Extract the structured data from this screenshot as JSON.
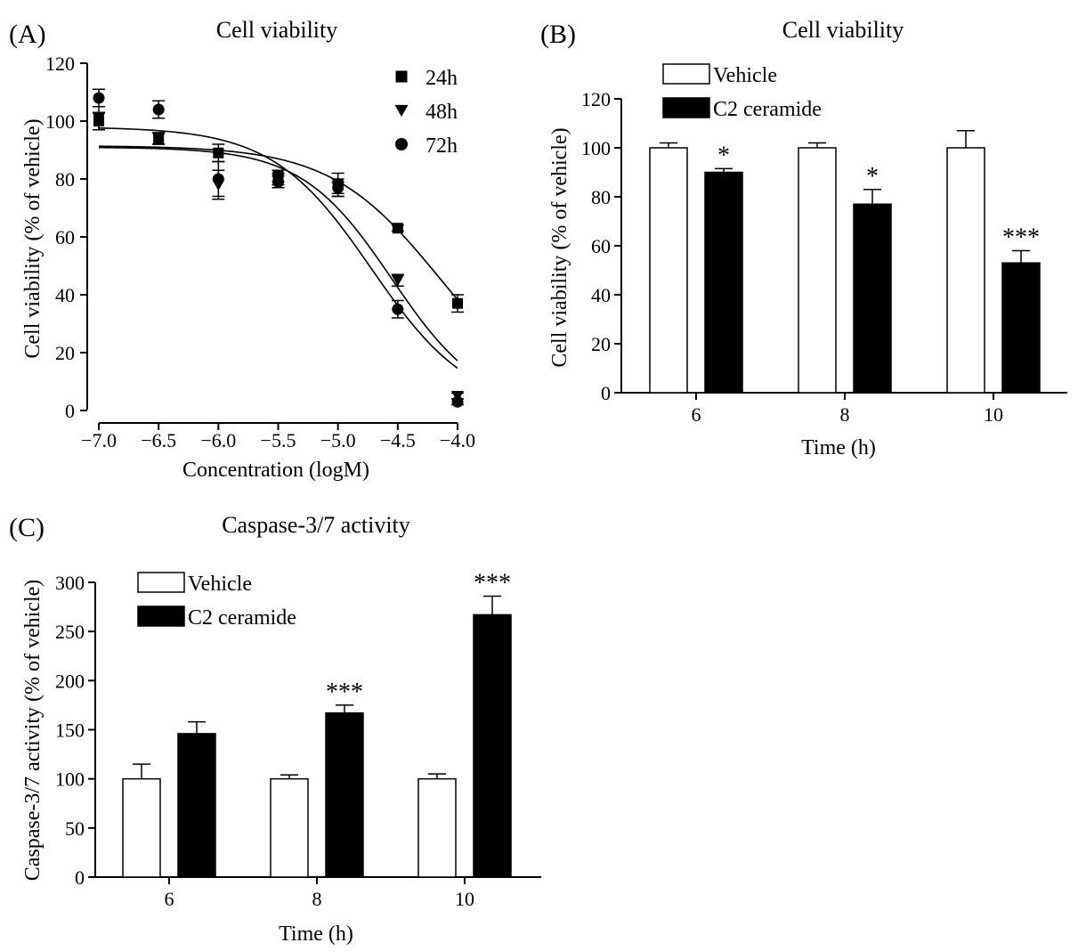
{
  "chart_data": [
    {
      "panel_label": "(A)",
      "type": "scatter",
      "title": "Cell viability",
      "xlabel": "Concentration (logM)",
      "ylabel": "Cell viability (% of vehicle)",
      "xlim": [
        -7.0,
        -4.0
      ],
      "ylim": [
        0,
        120
      ],
      "x_ticks": [
        -7.0,
        -6.5,
        -6.0,
        -5.5,
        -5.0,
        -4.5,
        -4.0
      ],
      "x_tick_labels": [
        "−7.0",
        "−6.5",
        "−6.0",
        "−5.5",
        "−5.0",
        "−4.5",
        "−4.0"
      ],
      "y_ticks": [
        0,
        20,
        40,
        60,
        80,
        100,
        120
      ],
      "y_tick_labels": [
        "0",
        "20",
        "40",
        "60",
        "80",
        "100",
        "120"
      ],
      "legend_position": "top-right",
      "x": [
        -7.0,
        -6.5,
        -6.0,
        -5.5,
        -5.0,
        -4.5,
        -4.0
      ],
      "series": [
        {
          "name": "24h",
          "marker": "square",
          "values": [
            100,
            94,
            89,
            81,
            78,
            63,
            37
          ],
          "errors": [
            3,
            2,
            3,
            2,
            4,
            1,
            3
          ],
          "fit": {
            "top": 91.5,
            "bottom": 0,
            "logEC50": -4.15,
            "hill": 0.95
          }
        },
        {
          "name": "48h",
          "marker": "triangle-down",
          "values": [
            101,
            94,
            78,
            80,
            77,
            45,
            5
          ],
          "errors": [
            4,
            2,
            5,
            2,
            3,
            2,
            1
          ],
          "fit": {
            "top": 91,
            "bottom": 0,
            "logEC50": -4.55,
            "hill": 1.15
          }
        },
        {
          "name": "72h",
          "marker": "circle",
          "values": [
            108,
            104,
            80,
            79,
            77,
            35,
            3
          ],
          "errors": [
            3,
            3,
            6,
            2,
            2,
            3,
            1
          ],
          "fit": {
            "top": 98,
            "bottom": 0,
            "logEC50": -4.72,
            "hill": 1.05
          }
        }
      ]
    },
    {
      "panel_label": "(B)",
      "type": "bar",
      "title": "Cell viability",
      "xlabel": "Time (h)",
      "ylabel": "Cell viability (% of vehicle)",
      "ylim": [
        0,
        120
      ],
      "y_ticks": [
        0,
        20,
        40,
        60,
        80,
        100,
        120
      ],
      "y_tick_labels": [
        "0",
        "20",
        "40",
        "60",
        "80",
        "100",
        "120"
      ],
      "categories": [
        "6",
        "8",
        "10"
      ],
      "legend_position": "top-left",
      "series": [
        {
          "name": "Vehicle",
          "color": "#ffffff",
          "values": [
            100,
            100,
            100
          ],
          "errors": [
            2,
            2,
            7
          ]
        },
        {
          "name": "C2 ceramide",
          "color": "#000000",
          "values": [
            90,
            77,
            53
          ],
          "errors": [
            1.5,
            6,
            5
          ]
        }
      ],
      "significance": [
        "*",
        "*",
        "***"
      ]
    },
    {
      "panel_label": "(C)",
      "type": "bar",
      "title": "Caspase-3/7 activity",
      "xlabel": "Time (h)",
      "ylabel": "Caspase-3/7 activity (% of vehicle)",
      "ylim": [
        0,
        300
      ],
      "y_ticks": [
        0,
        50,
        100,
        150,
        200,
        250,
        300
      ],
      "y_tick_labels": [
        "0",
        "50",
        "100",
        "150",
        "200",
        "250",
        "300"
      ],
      "categories": [
        "6",
        "8",
        "10"
      ],
      "legend_position": "top-left",
      "series": [
        {
          "name": "Vehicle",
          "color": "#ffffff",
          "values": [
            100,
            100,
            100
          ],
          "errors": [
            15,
            4,
            5
          ]
        },
        {
          "name": "C2 ceramide",
          "color": "#000000",
          "values": [
            146,
            167,
            267
          ],
          "errors": [
            12,
            8,
            19
          ]
        }
      ],
      "significance": [
        "",
        "***",
        "***"
      ]
    }
  ]
}
